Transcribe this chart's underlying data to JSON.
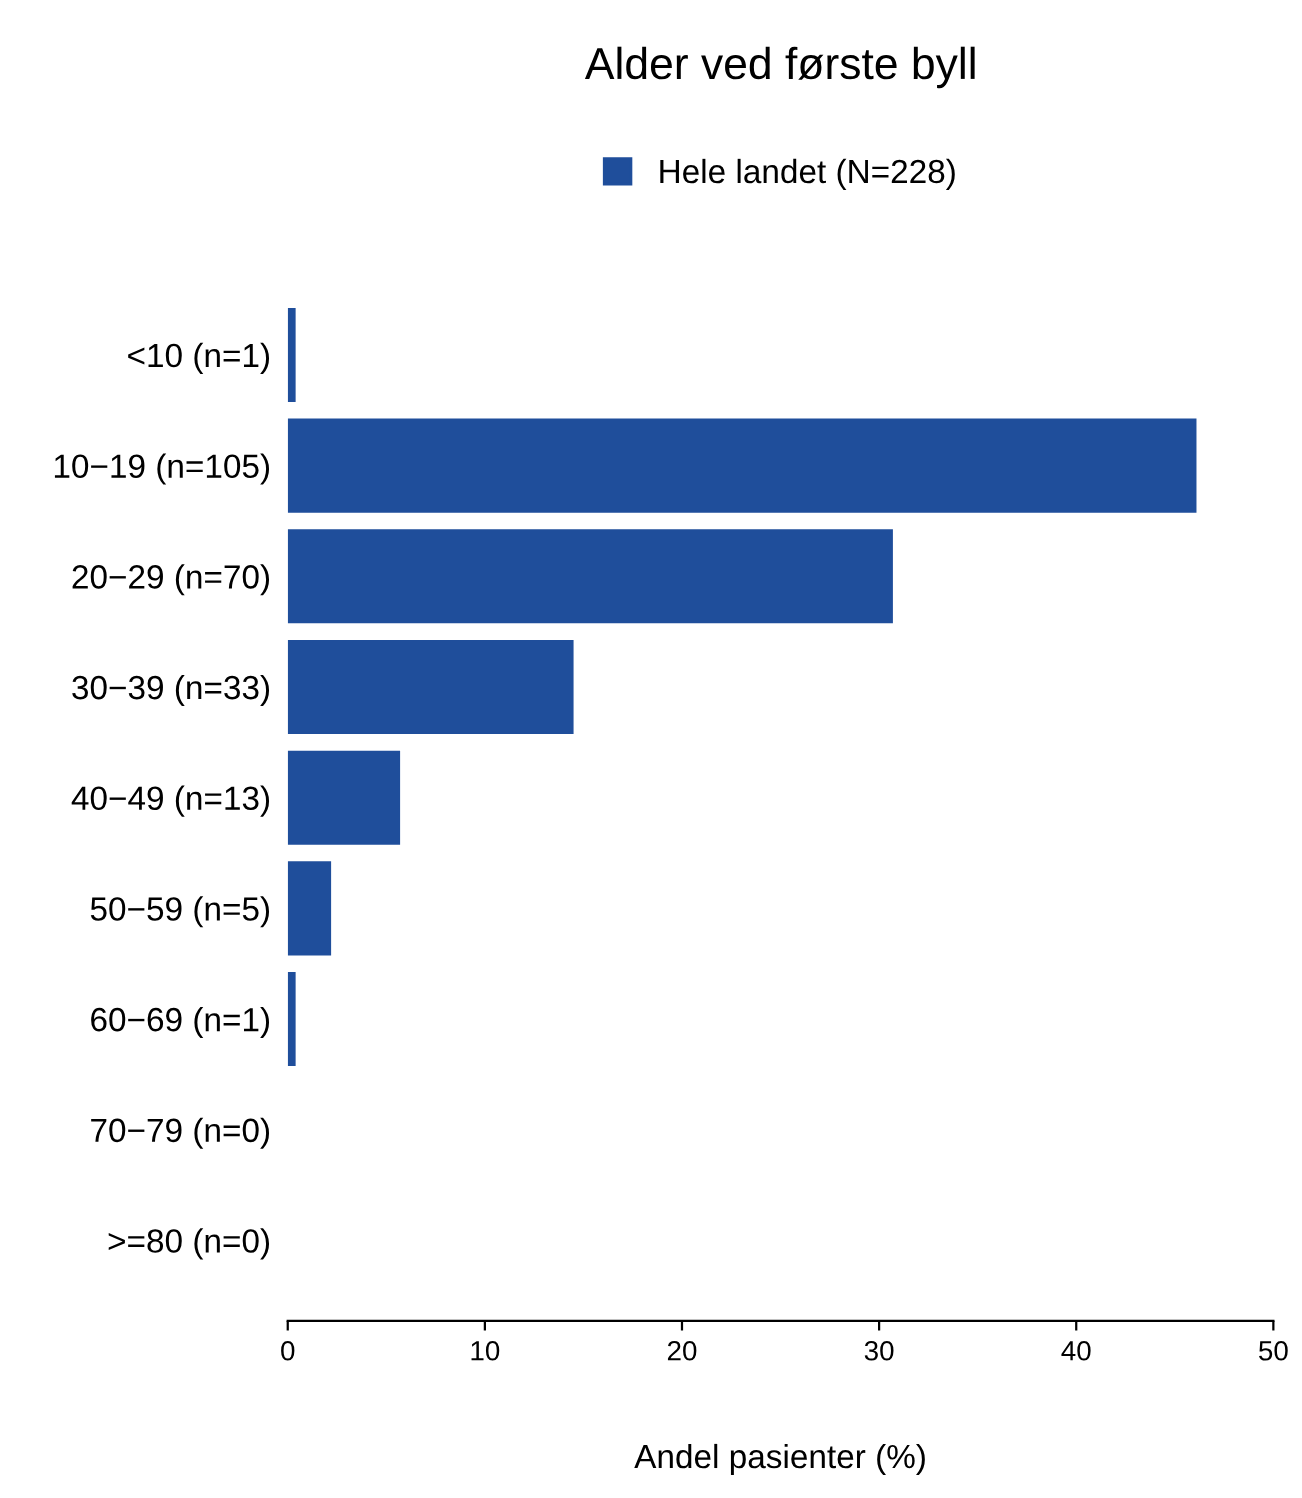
{
  "chart_data": {
    "type": "bar",
    "orientation": "horizontal",
    "title": "Alder ved første byll",
    "xlabel": "Andel pasienter (%)",
    "categories": [
      "<10 (n=1)",
      "10−19 (n=105)",
      "20−29 (n=70)",
      "30−39 (n=33)",
      "40−49 (n=13)",
      "50−59 (n=5)",
      "60−69 (n=1)",
      "70−79 (n=0)",
      ">=80 (n=0)"
    ],
    "series": [
      {
        "name": "Hele landet (N=228)",
        "color": "#1f4e9b",
        "values": [
          0.4,
          46.1,
          30.7,
          14.5,
          5.7,
          2.2,
          0.4,
          0,
          0
        ]
      }
    ],
    "xlim": [
      0,
      50
    ],
    "xticks": [
      0,
      10,
      20,
      30,
      40,
      50
    ],
    "grid": false,
    "legend": "top"
  }
}
